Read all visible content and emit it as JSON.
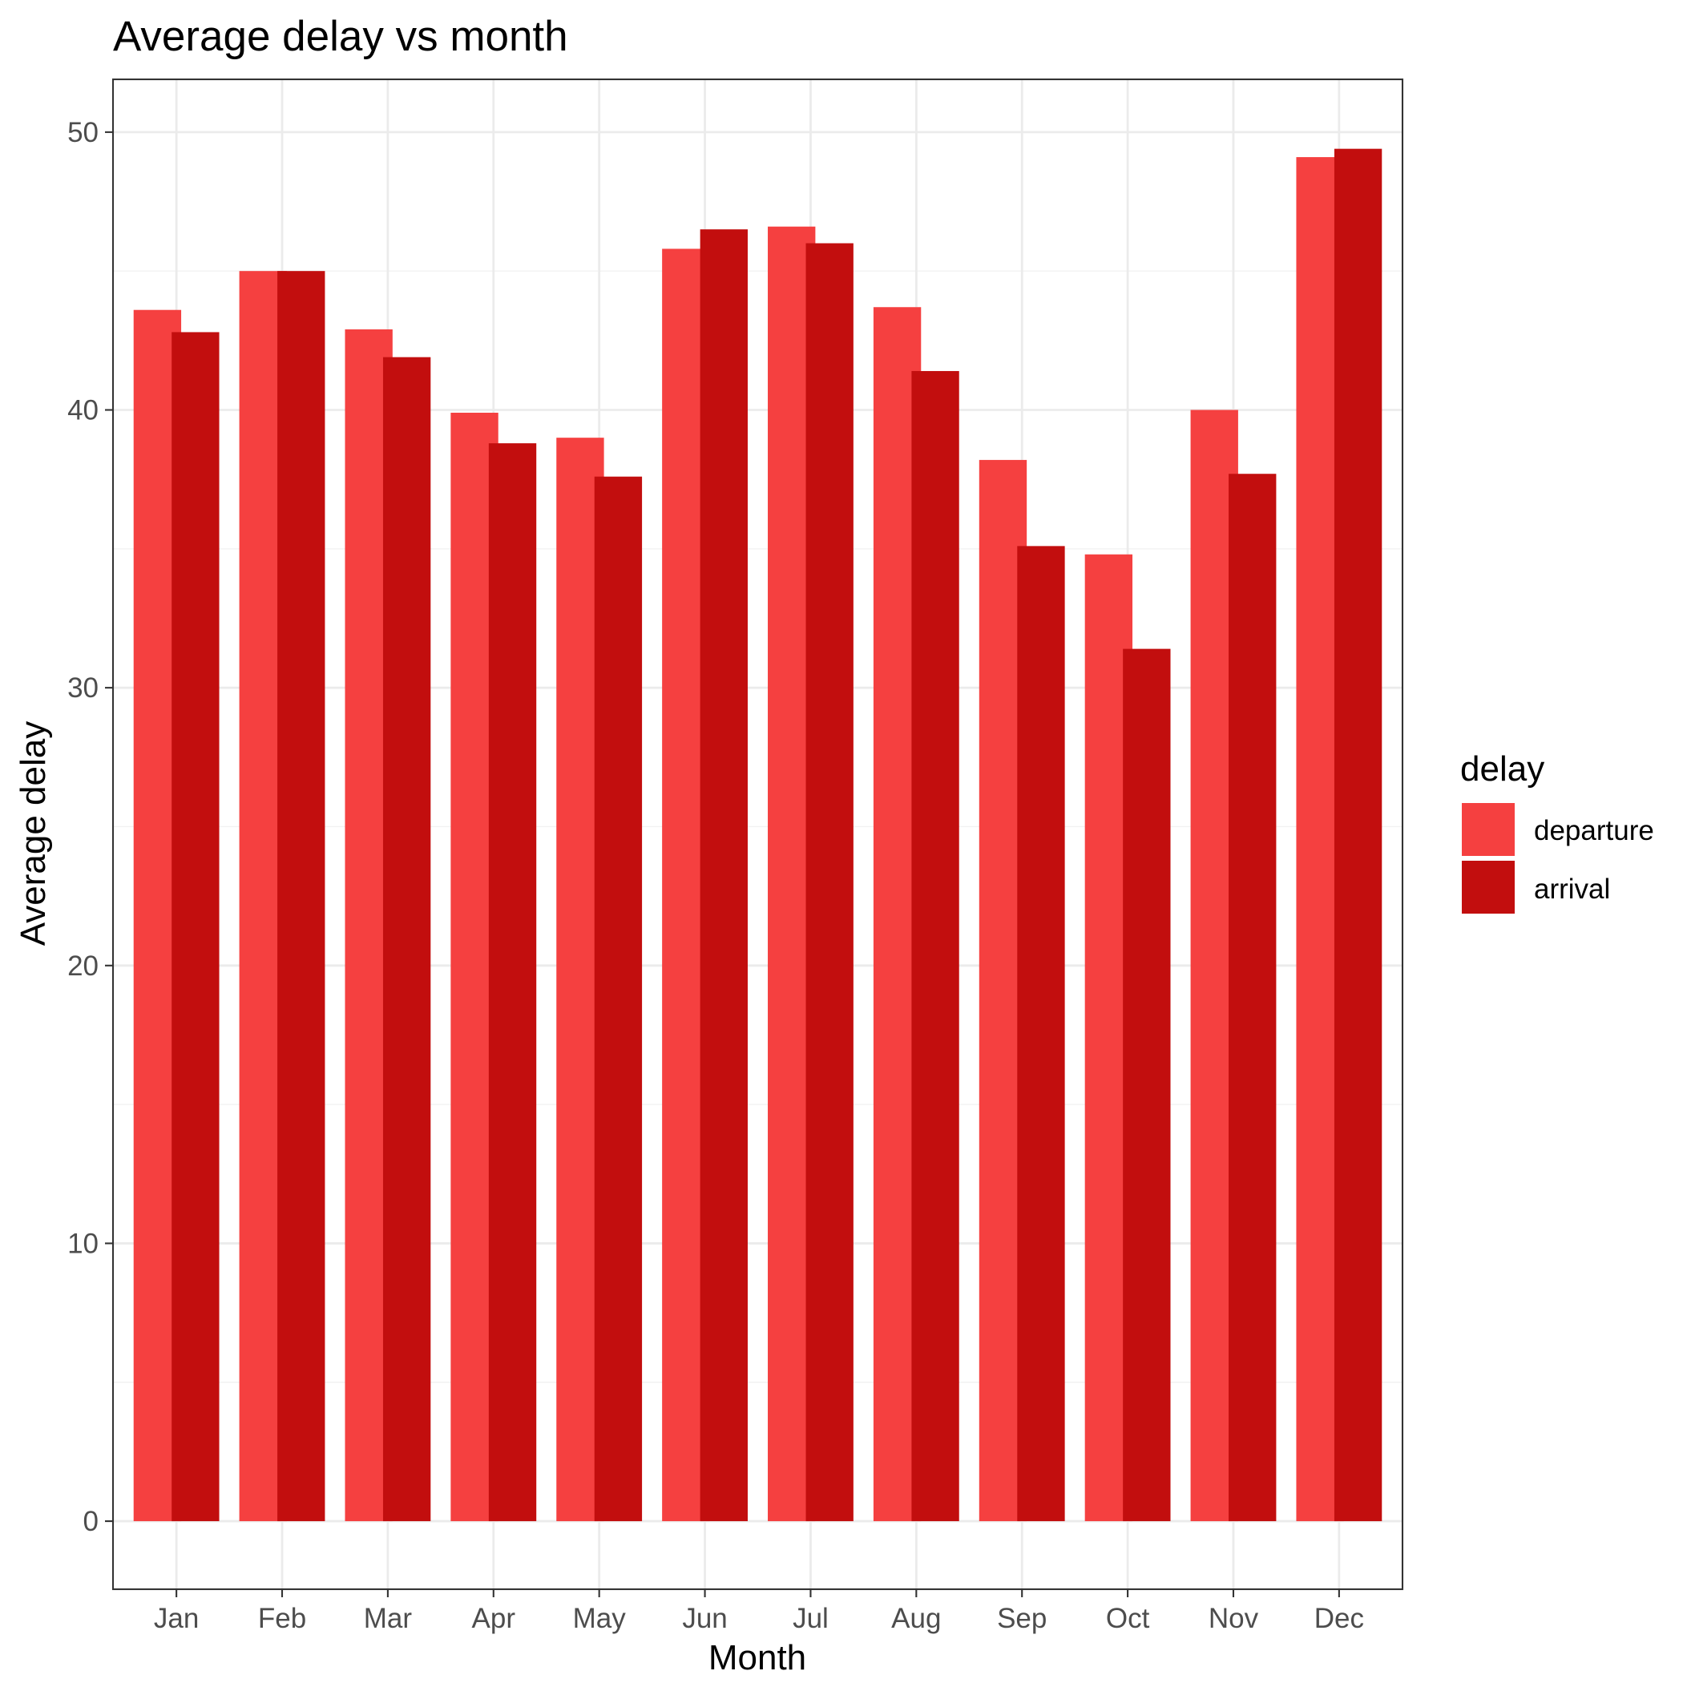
{
  "chart_data": {
    "type": "bar",
    "title": "Average delay vs month",
    "xlabel": "Month",
    "ylabel": "Average delay",
    "categories": [
      "Jan",
      "Feb",
      "Mar",
      "Apr",
      "May",
      "Jun",
      "Jul",
      "Aug",
      "Sep",
      "Oct",
      "Nov",
      "Dec"
    ],
    "series": [
      {
        "name": "departure",
        "color": "#f54040",
        "values": [
          43.6,
          45.0,
          42.9,
          39.9,
          39.0,
          45.8,
          46.6,
          43.7,
          38.2,
          34.8,
          40.0,
          49.1
        ]
      },
      {
        "name": "arrival",
        "color": "#c20e0e",
        "values": [
          42.8,
          45.0,
          41.9,
          38.8,
          37.6,
          46.5,
          46.0,
          41.4,
          35.1,
          31.4,
          37.7,
          49.4
        ]
      }
    ],
    "ylim": [
      -2.45,
      51.9
    ],
    "yticks": [
      0,
      10,
      20,
      30,
      40,
      50
    ],
    "grid": true,
    "legend": {
      "title": "delay",
      "position": "right"
    }
  }
}
